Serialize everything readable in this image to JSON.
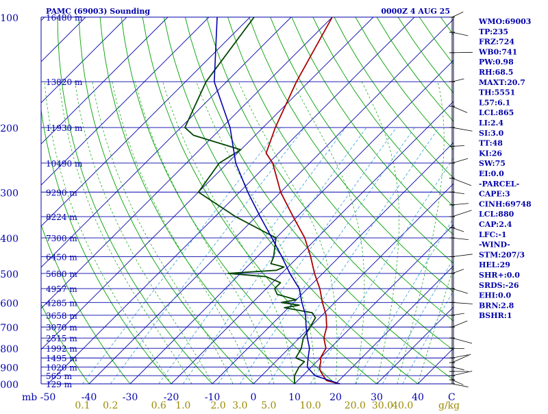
{
  "chart_data": {
    "type": "line",
    "title": "PAMC (69003) Sounding",
    "datetime": "0000Z  4 AUG 25",
    "pressure_labels": [
      "100",
      "200",
      "300",
      "400",
      "500",
      "600",
      "700",
      "800",
      "900",
      "1000"
    ],
    "height_labels": [
      {
        "p": 100,
        "label": "16480 m"
      },
      {
        "p": 150,
        "label": "13820 m"
      },
      {
        "p": 200,
        "label": "11930 m"
      },
      {
        "p": 250,
        "label": "10490 m"
      },
      {
        "p": 300,
        "label": "9290 m"
      },
      {
        "p": 350,
        "label": "8224 m"
      },
      {
        "p": 400,
        "label": "7300 m"
      },
      {
        "p": 450,
        "label": "6450 m"
      },
      {
        "p": 500,
        "label": "5680 m"
      },
      {
        "p": 550,
        "label": "4957 m"
      },
      {
        "p": 600,
        "label": "4285 m"
      },
      {
        "p": 650,
        "label": "3658 m"
      },
      {
        "p": 700,
        "label": "3070 m"
      },
      {
        "p": 750,
        "label": "2515 m"
      },
      {
        "p": 800,
        "label": "1992 m"
      },
      {
        "p": 850,
        "label": "1495 m"
      },
      {
        "p": 900,
        "label": "1020 m"
      },
      {
        "p": 950,
        "label": "565 m"
      },
      {
        "p": 1000,
        "label": "129 m"
      }
    ],
    "temp_labels": [
      "mb",
      "-50",
      "-40",
      "-30",
      "-20",
      "-10",
      "0",
      "10",
      "20",
      "30",
      "40",
      "C"
    ],
    "temp_values": [
      -50,
      -40,
      -30,
      -20,
      -10,
      0,
      10,
      20,
      30,
      40
    ],
    "mixing_labels": [
      "0.1",
      "0.2",
      "0.6",
      "1.0",
      "2.0",
      "3.0",
      "5.0",
      "10.0",
      "20.0",
      "30.0",
      "40.0",
      "g/kg"
    ],
    "mixing_values": [
      0.1,
      0.2,
      0.6,
      1.0,
      2.0,
      3.0,
      5.0,
      10.0,
      20.0,
      30.0,
      40.0
    ],
    "series": [
      {
        "key": "temperature",
        "color": "#aa0000",
        "points": [
          [
            1000,
            21
          ],
          [
            980,
            17
          ],
          [
            950,
            15
          ],
          [
            920,
            13
          ],
          [
            900,
            12
          ],
          [
            870,
            11
          ],
          [
            850,
            10
          ],
          [
            800,
            9
          ],
          [
            750,
            6
          ],
          [
            700,
            4
          ],
          [
            650,
            1
          ],
          [
            600,
            -3
          ],
          [
            550,
            -7
          ],
          [
            500,
            -12
          ],
          [
            450,
            -17
          ],
          [
            400,
            -23
          ],
          [
            350,
            -31
          ],
          [
            300,
            -40
          ],
          [
            250,
            -49
          ],
          [
            235,
            -53
          ],
          [
            200,
            -57
          ],
          [
            150,
            -63
          ],
          [
            100,
            -70
          ]
        ]
      },
      {
        "key": "dewpoint",
        "color": "#004400",
        "points": [
          [
            1000,
            10
          ],
          [
            950,
            8
          ],
          [
            900,
            7
          ],
          [
            870,
            7
          ],
          [
            850,
            4
          ],
          [
            800,
            3
          ],
          [
            750,
            1
          ],
          [
            700,
            0
          ],
          [
            660,
            -1
          ],
          [
            640,
            -3
          ],
          [
            620,
            -11
          ],
          [
            610,
            -8
          ],
          [
            600,
            -13
          ],
          [
            590,
            -10
          ],
          [
            570,
            -16
          ],
          [
            550,
            -18
          ],
          [
            530,
            -18
          ],
          [
            510,
            -23
          ],
          [
            500,
            -33
          ],
          [
            490,
            -22
          ],
          [
            480,
            -21
          ],
          [
            470,
            -25
          ],
          [
            450,
            -26
          ],
          [
            400,
            -30
          ],
          [
            350,
            -45
          ],
          [
            300,
            -60
          ],
          [
            250,
            -62
          ],
          [
            230,
            -60
          ],
          [
            210,
            -75
          ],
          [
            200,
            -79
          ],
          [
            150,
            -85
          ],
          [
            100,
            -89
          ]
        ]
      },
      {
        "key": "parcel",
        "color": "#0000aa",
        "points": [
          [
            1000,
            21
          ],
          [
            950,
            13
          ],
          [
            900,
            9
          ],
          [
            850,
            7
          ],
          [
            800,
            5
          ],
          [
            750,
            2
          ],
          [
            700,
            -1
          ],
          [
            650,
            -4
          ],
          [
            600,
            -8
          ],
          [
            550,
            -12
          ],
          [
            500,
            -18
          ],
          [
            450,
            -24
          ],
          [
            400,
            -31
          ],
          [
            350,
            -39
          ],
          [
            300,
            -48
          ],
          [
            250,
            -58
          ],
          [
            200,
            -68
          ],
          [
            150,
            -83
          ],
          [
            100,
            -98
          ]
        ]
      }
    ],
    "indices": [
      "WMO:69003",
      "TP:235",
      "FRZ:724",
      "WB0:741",
      "PW:0.98",
      "RH:68.5",
      "MAXT:20.7",
      "TH:5551",
      "L57:6.1",
      "LCL:865",
      "LI:2.4",
      "SI:3.0",
      "TT:48",
      "KI:26",
      "SW:75",
      "EI:0.0",
      "-PARCEL-",
      "CAPE:3",
      "CINH:69748",
      "LCL:880",
      "CAP:2.4",
      "LFC:-1",
      "-WIND-",
      "STM:207/3",
      "HEL:29",
      "SHR+:0.0",
      "SRDS:-26",
      "EHI:0.0",
      "BRN:2.8",
      "BSHR:1"
    ],
    "xlim": [
      -50,
      50
    ],
    "ylim": [
      1000,
      100
    ],
    "colors": {
      "isobar": "#0000aa",
      "isotherm": "#0000aa",
      "dry_adiabat": "#00a000",
      "moist_adiabat": "#00a000",
      "mixing": "#4aa8d8",
      "mixing_text": "#9a8a00"
    }
  }
}
